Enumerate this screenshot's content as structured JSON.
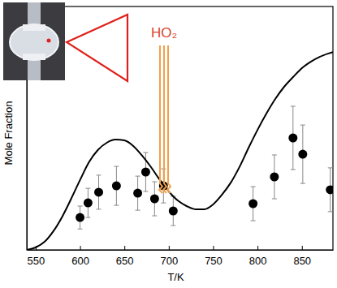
{
  "chart_data": {
    "type": "scatter",
    "x_label": "T/K",
    "y_label": "Mole Fraction",
    "annotation": "HO₂",
    "xlim": [
      540,
      885
    ],
    "xticks": [
      550,
      600,
      650,
      700,
      750,
      800,
      850
    ],
    "ylim": [
      0,
      100
    ],
    "tick_labels": "x",
    "series": [
      {
        "type": "scatter",
        "marker": "circle",
        "color": "#000000",
        "x": [
          600,
          609,
          621,
          641,
          665,
          674,
          684,
          694,
          705,
          795,
          819,
          840,
          851,
          882
        ],
        "values": [
          13.3,
          19.3,
          23.7,
          26.3,
          23.3,
          32,
          21,
          26.3,
          16,
          19,
          30,
          46,
          39.3,
          24.7
        ],
        "errors": [
          4.7,
          6,
          7,
          8,
          7,
          8,
          7,
          7,
          6,
          7,
          9,
          13,
          12,
          9
        ]
      },
      {
        "type": "line",
        "line_style": "solid",
        "color": "#000000",
        "x": [
          540,
          550,
          560,
          570,
          580,
          590,
          600,
          610,
          620,
          630,
          640,
          650,
          660,
          670,
          680,
          690,
          700,
          710,
          720,
          730,
          740,
          750,
          760,
          770,
          780,
          790,
          800,
          810,
          820,
          830,
          840,
          850,
          860,
          870,
          880,
          885
        ],
        "values": [
          0,
          1,
          3.3,
          7.7,
          13.7,
          21,
          28.7,
          36,
          41,
          44,
          45.3,
          45,
          42.7,
          38.7,
          34,
          28.7,
          24,
          20.3,
          18,
          16.7,
          16.7,
          18.7,
          22.7,
          27.7,
          34.3,
          42,
          49.3,
          56,
          62,
          67,
          71,
          74.7,
          77.3,
          79.3,
          80.7,
          81.3
        ]
      }
    ]
  }
}
